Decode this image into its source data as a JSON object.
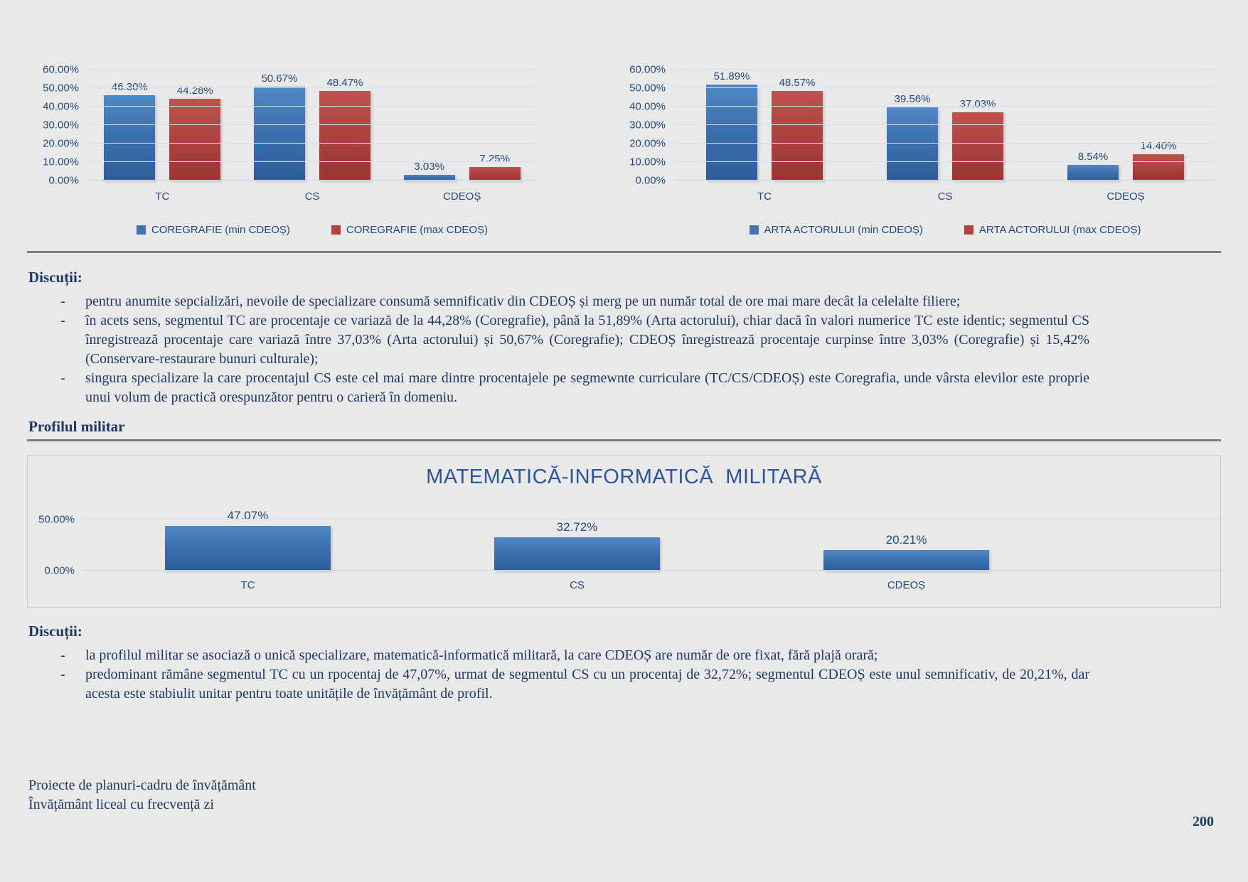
{
  "glyphs": {
    "dash": "-"
  },
  "colors": {
    "background": "#E9E9E9",
    "text_navy": "#1F3864",
    "chart_text": "#24497B",
    "bar_blue": "#4473AE",
    "bar_red": "#B5433F",
    "military_title_blue": "#2E5697",
    "divider_gray": "#7F7F7F"
  },
  "chart_data": [
    {
      "type": "bar",
      "name": "coregrafie",
      "title": "",
      "categories": [
        "TC",
        "CS",
        "CDEOȘ"
      ],
      "ylim": [
        0,
        60
      ],
      "grid": true,
      "legend_position": "bottom",
      "yticks": [
        {
          "label": "60.00%",
          "value": 60
        },
        {
          "label": "50.00%",
          "value": 50
        },
        {
          "label": "40.00%",
          "value": 40
        },
        {
          "label": "30.00%",
          "value": 30
        },
        {
          "label": "20.00%",
          "value": 20
        },
        {
          "label": "10.00%",
          "value": 10
        },
        {
          "label": "0.00%",
          "value": 0
        }
      ],
      "series": [
        {
          "name": "COREGRAFIE (min CDEOȘ)",
          "color": "#4473AE",
          "values": [
            46.3,
            50.67,
            3.03
          ],
          "labels": [
            "46.30%",
            "50.67%",
            "3.03%"
          ]
        },
        {
          "name": "COREGRAFIE (max CDEOȘ)",
          "color": "#B5433F",
          "values": [
            44.28,
            48.47,
            7.25
          ],
          "labels": [
            "44.28%",
            "48.47%",
            "7.25%"
          ]
        }
      ]
    },
    {
      "type": "bar",
      "name": "arta-actorului",
      "title": "",
      "categories": [
        "TC",
        "CS",
        "CDEOȘ"
      ],
      "ylim": [
        0,
        60
      ],
      "grid": true,
      "legend_position": "bottom",
      "yticks": [
        {
          "label": "60.00%",
          "value": 60
        },
        {
          "label": "50.00%",
          "value": 50
        },
        {
          "label": "40.00%",
          "value": 40
        },
        {
          "label": "30.00%",
          "value": 30
        },
        {
          "label": "20.00%",
          "value": 20
        },
        {
          "label": "10.00%",
          "value": 10
        },
        {
          "label": "0.00%",
          "value": 0
        }
      ],
      "series": [
        {
          "name": "ARTA ACTORULUI (min CDEOȘ)",
          "color": "#4473AE",
          "values": [
            51.89,
            39.56,
            8.54
          ],
          "labels": [
            "51.89%",
            "39.56%",
            "8.54%"
          ]
        },
        {
          "name": "ARTA ACTORULUI (max CDEOȘ)",
          "color": "#B5433F",
          "values": [
            48.57,
            37.03,
            14.4
          ],
          "labels": [
            "48.57%",
            "37.03%",
            "14.40%"
          ]
        }
      ]
    },
    {
      "type": "bar",
      "name": "matematica-informatica-militara",
      "title": "MATEMATICĂ-INFORMATICĂ  MILITARĂ",
      "categories": [
        "TC",
        "CS",
        "CDEOȘ"
      ],
      "ylim": [
        0,
        60
      ],
      "grid": true,
      "legend_position": "none",
      "yticks": [
        {
          "label": "50.00%",
          "value": 50
        },
        {
          "label": "0.00%",
          "value": 0
        }
      ],
      "series": [
        {
          "name": "MATEMATICĂ-INFORMATICĂ MILITARĂ",
          "color": "#4473AE",
          "values": [
            47.07,
            32.72,
            20.21
          ],
          "labels": [
            "47.07%",
            "32.72%",
            "20.21%"
          ]
        }
      ]
    }
  ],
  "sections": {
    "discutii1": {
      "heading": "Discuții:",
      "bullets": [
        "pentru anumite sepcializări, nevoile de specializare consumă semnificativ din CDEOȘ și merg pe un număr total de ore mai mare decât la celelalte filiere;",
        "în acets sens, segmentul TC are procentaje ce variază de la 44,28% (Coregrafie), până la 51,89% (Arta actorului), chiar dacă în valori numerice TC este identic; segmentul CS înregistrează procentaje care variază între 37,03% (Arta actorului) și 50,67% (Coregrafie); CDEOȘ înregistrează procentaje curpinse între 3,03% (Coregrafie) și 15,42% (Conservare-restaurare bunuri culturale);",
        "singura specializare la care procentajul CS este cel mai mare dintre procentajele pe segmewnte curriculare (TC/CS/CDEOȘ) este Coregrafia, unde vârsta elevilor este proprie unui volum de practică  orespunzător pentru o carieră în domeniu."
      ]
    },
    "profil_heading": "Profilul militar",
    "discutii2": {
      "heading": "Discuții:",
      "bullets": [
        "la profilul militar se asociază o unică specializare, matematică-informatică militară, la care CDEOȘ are număr de ore fixat, fără plajă orară;",
        "predominant rămâne segmentul TC cu un rpocentaj de 47,07%, urmat de segmentul CS cu un procentaj de 32,72%; segmentul CDEOȘ este unul semnificativ, de 20,21%, dar acesta este stabiulit unitar pentru toate unitățile de învățământ de profil."
      ]
    }
  },
  "footer": {
    "line1": "Proiecte de planuri-cadru de învățământ",
    "line2": "Învățământ liceal cu frecvență zi",
    "page_number": "200"
  }
}
